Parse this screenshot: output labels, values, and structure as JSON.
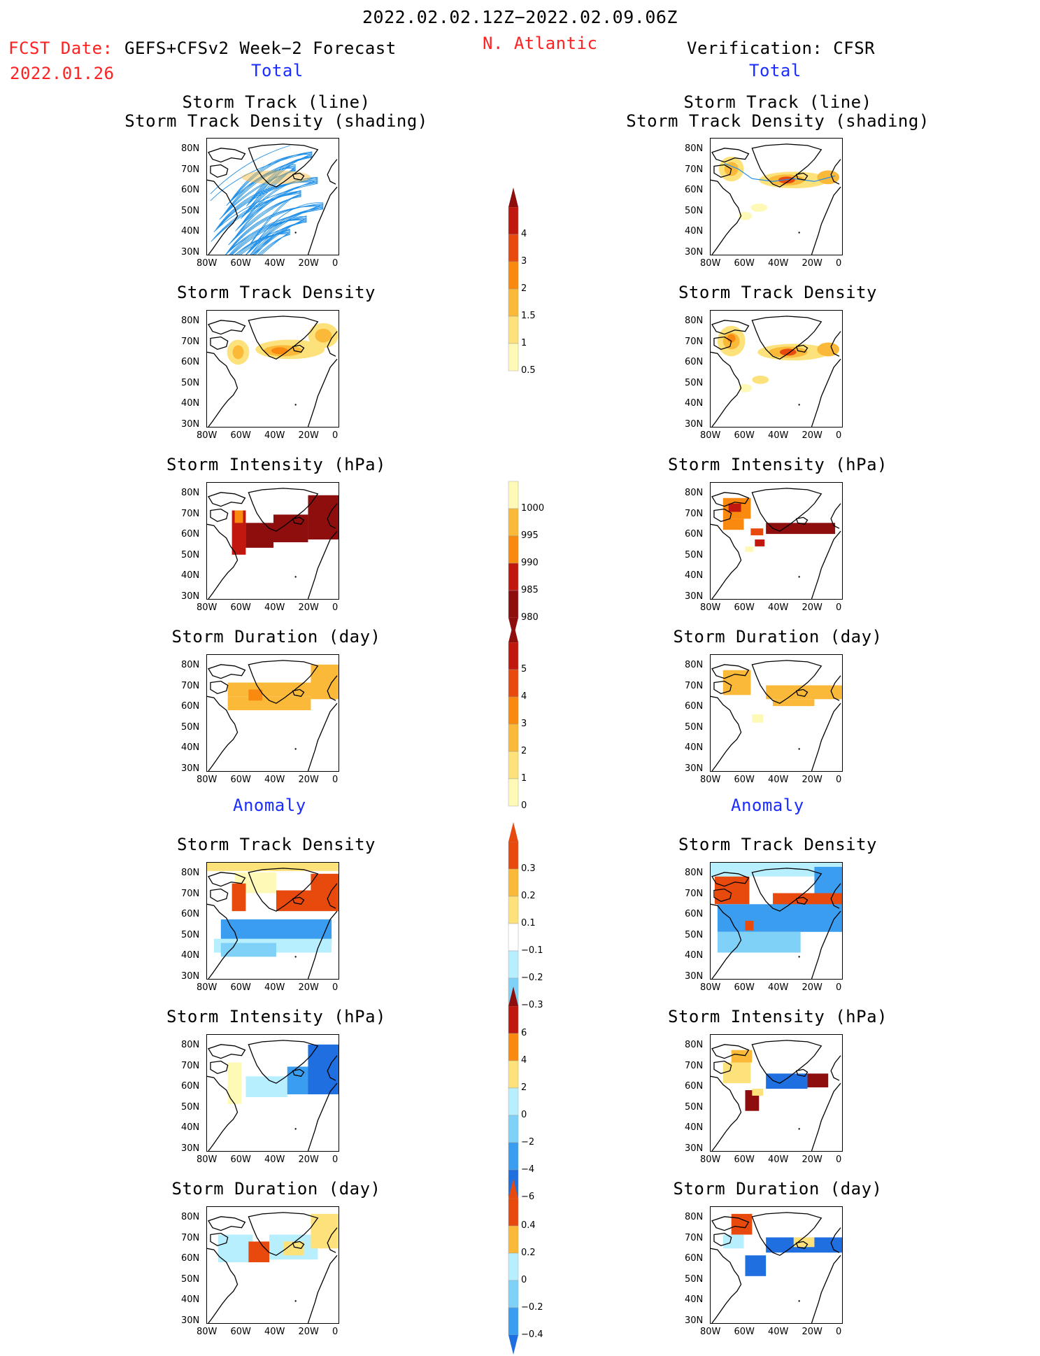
{
  "header": {
    "title": "2022.02.02.12Z−2022.02.09.06Z",
    "fcst_prefix": "FCST Date:",
    "fcst_model": "GEFS+CFSv2 Week−2 Forecast",
    "fcst_date": "2022.01.26",
    "region": "N. Atlantic",
    "verification": "Verification: CFSR",
    "total_left": "Total",
    "total_right": "Total",
    "anomaly_left": "Anomaly",
    "anomaly_right": "Anomaly"
  },
  "panels": {
    "track_line": "Storm Track (line)",
    "track_density_shading": "Storm Track Density (shading)",
    "track_density": "Storm Track Density",
    "intensity": "Storm Intensity (hPa)",
    "duration": "Storm Duration (day)"
  },
  "axes": {
    "lat_ticks": [
      "80N",
      "70N",
      "60N",
      "50N",
      "40N",
      "30N"
    ],
    "lon_ticks": [
      "80W",
      "60W",
      "40W",
      "20W",
      "0"
    ]
  },
  "colorbars": {
    "density": [
      "4",
      "3",
      "2",
      "1.5",
      "1",
      "0.5"
    ],
    "intensity": [
      "1000",
      "995",
      "990",
      "985",
      "980"
    ],
    "duration": [
      "5",
      "4",
      "3",
      "2",
      "1",
      "0"
    ],
    "density_anom": [
      "0.3",
      "0.2",
      "0.1",
      "−0.1",
      "−0.2",
      "−0.3"
    ],
    "intensity_anom": [
      "6",
      "4",
      "2",
      "0",
      "−2",
      "−4",
      "−6"
    ],
    "duration_anom": [
      "0.4",
      "0.2",
      "0",
      "−0.2",
      "−0.4"
    ]
  },
  "colors": {
    "warm": [
      "#fff9b8",
      "#fde17a",
      "#fbb93a",
      "#f98a0f",
      "#e84a0e",
      "#c0180e",
      "#8e0e0e"
    ],
    "cool": [
      "#b8efff",
      "#7fd1f7",
      "#3a9df0",
      "#1f6fe0"
    ],
    "track_line": "#1f8fe8",
    "title_red": "#ff2020",
    "title_blue": "#1a2cff"
  }
}
